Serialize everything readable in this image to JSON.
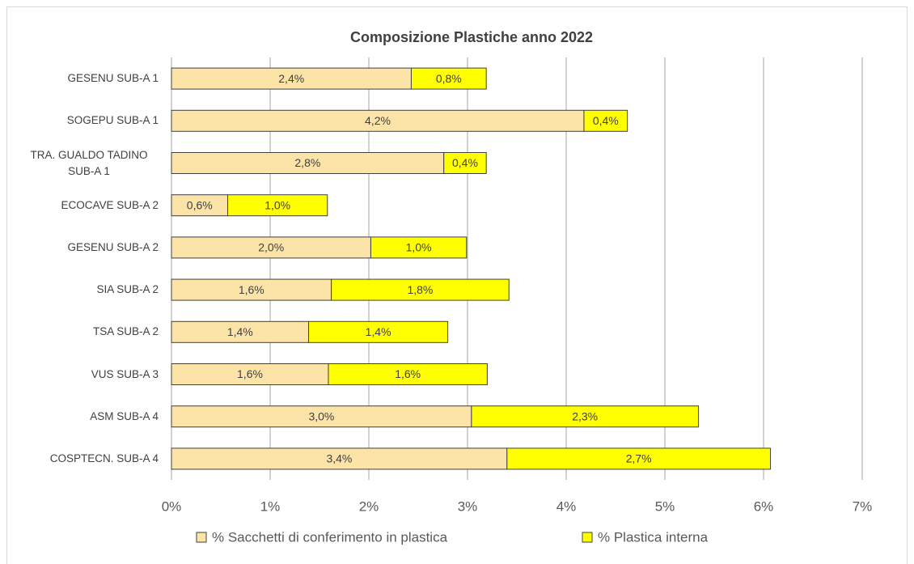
{
  "chart_data": {
    "type": "stacked-barh",
    "title": "Composizione Plastiche anno 2022",
    "categories": [
      "GESENU SUB-A 1",
      "SOGEPU SUB-A 1",
      "TRA. GUALDO TADINO SUB-A 1",
      "ECOCAVE SUB-A 2",
      "GESENU SUB-A 2",
      "SIA SUB-A 2",
      "TSA SUB-A 2",
      "VUS SUB-A 3",
      "ASM SUB-A 4",
      "COSPTECN. SUB-A 4"
    ],
    "series": [
      {
        "name": "% Sacchetti di conferimento in plastica",
        "color": "#fce4a8",
        "values": [
          2.43,
          4.18,
          2.76,
          0.57,
          2.02,
          1.62,
          1.39,
          1.59,
          3.04,
          3.4
        ],
        "value_labels": [
          "2,4%",
          "4,2%",
          "2,8%",
          "0,6%",
          "2,0%",
          "1,6%",
          "1,4%",
          "1,6%",
          "3,0%",
          "3,4%"
        ]
      },
      {
        "name": "% Plastica interna",
        "color": "#ffff00",
        "values": [
          0.76,
          0.44,
          0.43,
          1.01,
          0.97,
          1.8,
          1.41,
          1.61,
          2.3,
          2.67
        ],
        "value_labels": [
          "0,8%",
          "0,4%",
          "0,4%",
          "1,0%",
          "1,0%",
          "1,8%",
          "1,4%",
          "1,6%",
          "2,3%",
          "2,7%"
        ]
      }
    ],
    "xlim": [
      0,
      7
    ],
    "xticks": [
      {
        "value": 0,
        "label": "0%"
      },
      {
        "value": 1,
        "label": "1%"
      },
      {
        "value": 2,
        "label": "2%"
      },
      {
        "value": 3,
        "label": "3%"
      },
      {
        "value": 4,
        "label": "4%"
      },
      {
        "value": 5,
        "label": "5%"
      },
      {
        "value": 6,
        "label": "6%"
      },
      {
        "value": 7,
        "label": "7%"
      }
    ],
    "grid": true,
    "legend": "bottom"
  }
}
